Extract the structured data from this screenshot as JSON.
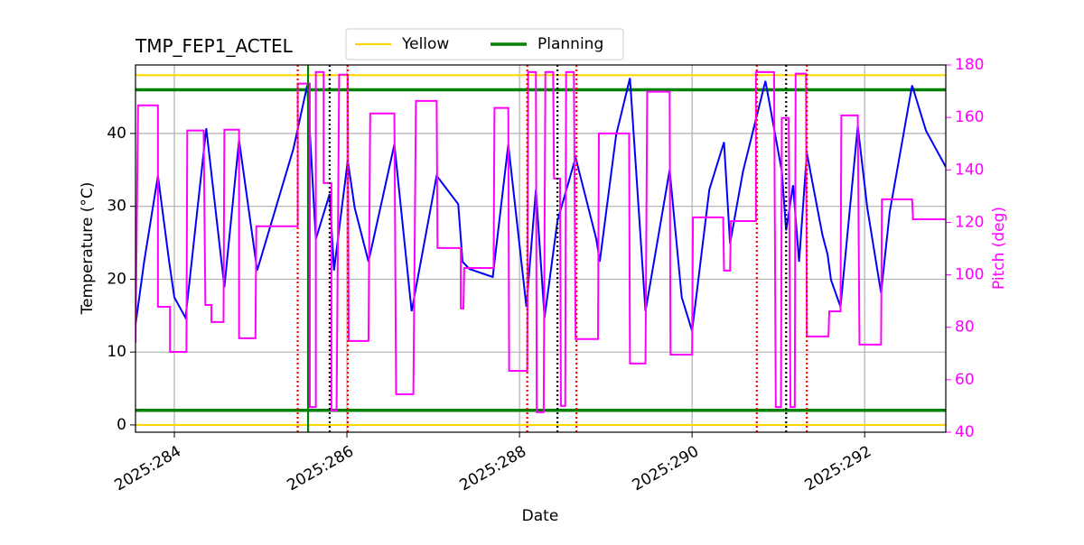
{
  "chart_data": {
    "type": "line",
    "title": "TMP_FEP1_ACTEL",
    "x_label": "Date",
    "y_label": "Temperature (°C)",
    "y2_label": "Pitch (deg)",
    "xlim": [
      283.55,
      292.94
    ],
    "ylim": [
      -1,
      49.4
    ],
    "y2lim": [
      40,
      180
    ],
    "xticks": [
      {
        "value": 284,
        "label": "2025:284"
      },
      {
        "value": 286,
        "label": "2025:286"
      },
      {
        "value": 288,
        "label": "2025:288"
      },
      {
        "value": 290,
        "label": "2025:290"
      },
      {
        "value": 292,
        "label": "2025:292"
      }
    ],
    "yticks": [
      0,
      10,
      20,
      30,
      40
    ],
    "y2ticks": [
      40,
      60,
      80,
      100,
      120,
      140,
      160,
      180
    ],
    "grid": true,
    "legend": "top",
    "limit_lines": [
      {
        "name": "Yellow",
        "color": "#ffd700",
        "values": [
          0,
          48
        ]
      },
      {
        "name": "Planning",
        "color": "#008000",
        "values": [
          2,
          46
        ]
      }
    ],
    "event_lines": [
      {
        "color": "#ff0000",
        "style": "dotted",
        "x": [
          285.43,
          286.01,
          288.09,
          288.66,
          290.75,
          291.33
        ]
      },
      {
        "color": "#000000",
        "style": "dotted",
        "x": [
          285.8,
          288.44,
          291.09
        ]
      },
      {
        "color": "#008000",
        "style": "solid",
        "x": [
          285.55
        ]
      }
    ],
    "series": [
      {
        "color": "#0000ff",
        "axis": "y",
        "x": [
          283.55,
          283.65,
          283.81,
          283.94,
          284.0,
          284.13,
          284.37,
          284.58,
          284.75,
          284.96,
          285.38,
          285.54,
          285.64,
          285.8,
          285.85,
          286.01,
          286.09,
          286.25,
          286.55,
          286.75,
          287.04,
          287.29,
          287.34,
          287.42,
          287.69,
          287.87,
          288.08,
          288.19,
          288.29,
          288.44,
          288.65,
          288.89,
          288.93,
          289.12,
          289.28,
          289.46,
          289.74,
          289.88,
          290.0,
          290.2,
          290.37,
          290.44,
          290.59,
          290.85,
          291.04,
          291.09,
          291.17,
          291.24,
          291.33,
          291.51,
          291.57,
          291.61,
          291.72,
          291.92,
          292.03,
          292.19,
          292.29,
          292.55,
          292.71,
          292.94
        ],
        "values": [
          13.7,
          22.4,
          34.2,
          22.4,
          17.5,
          14.7,
          40.7,
          18.9,
          39.1,
          21.2,
          37.9,
          46.6,
          25.5,
          31.7,
          21.2,
          36.3,
          29.8,
          22.4,
          38.5,
          15.6,
          34.2,
          30.3,
          22.4,
          21.4,
          20.3,
          38.5,
          16.2,
          32.3,
          14.7,
          28.0,
          36.7,
          25.5,
          22.4,
          39.8,
          47.6,
          15.6,
          35.0,
          17.5,
          12.9,
          32.3,
          38.8,
          24.9,
          34.8,
          47.2,
          34.8,
          26.7,
          32.9,
          22.4,
          37.3,
          26.1,
          23.4,
          19.9,
          16.2,
          41.0,
          29.8,
          18.1,
          29.2,
          46.6,
          40.4,
          35.4
        ]
      },
      {
        "color": "#ff00ff",
        "axis": "y2",
        "x": [
          283.55,
          283.58,
          283.81,
          283.81,
          283.95,
          283.95,
          284.14,
          284.15,
          284.34,
          284.36,
          284.43,
          284.43,
          284.57,
          284.58,
          284.75,
          284.75,
          284.94,
          284.95,
          285.43,
          285.43,
          285.57,
          285.57,
          285.64,
          285.64,
          285.73,
          285.73,
          285.82,
          285.82,
          285.88,
          285.91,
          286.01,
          286.02,
          286.25,
          286.27,
          286.55,
          286.57,
          286.77,
          286.8,
          287.04,
          287.05,
          287.32,
          287.32,
          287.35,
          287.36,
          287.7,
          287.71,
          287.87,
          287.88,
          288.09,
          288.1,
          288.19,
          288.2,
          288.28,
          288.3,
          288.39,
          288.4,
          288.47,
          288.48,
          288.53,
          288.54,
          288.63,
          288.65,
          288.91,
          288.92,
          289.27,
          289.28,
          289.46,
          289.48,
          289.74,
          289.75,
          290.0,
          290.01,
          290.36,
          290.37,
          290.44,
          290.45,
          290.74,
          290.74,
          290.95,
          290.97,
          291.03,
          291.04,
          291.12,
          291.14,
          291.19,
          291.2,
          291.32,
          291.33,
          291.58,
          291.59,
          291.72,
          291.73,
          291.92,
          291.94,
          292.19,
          292.2,
          292.55,
          292.56,
          292.94
        ],
        "values": [
          74,
          164.6,
          164.6,
          87.8,
          87.8,
          70.6,
          70.6,
          155,
          155,
          88.5,
          88.5,
          82,
          82,
          155.3,
          155.3,
          75.8,
          75.8,
          118.5,
          118.5,
          172.9,
          172.9,
          49.6,
          49.6,
          177.3,
          177.3,
          135,
          135,
          48.3,
          48.3,
          176.3,
          176.3,
          74.8,
          74.8,
          161.5,
          161.5,
          54.5,
          54.5,
          166.3,
          166.3,
          110.2,
          110.2,
          87.2,
          87.2,
          102.6,
          102.6,
          163.6,
          163.6,
          63.4,
          63.4,
          177.3,
          177.3,
          47.6,
          47.6,
          177.3,
          177.3,
          136.7,
          136.7,
          50,
          50,
          177.3,
          177.3,
          75.5,
          75.5,
          153.9,
          153.9,
          66.2,
          66.2,
          169.8,
          169.8,
          69.6,
          69.6,
          121.9,
          121.9,
          101.6,
          101.6,
          120.5,
          120.5,
          177.3,
          177.3,
          49.6,
          49.6,
          159.8,
          159.8,
          49.6,
          49.6,
          176.7,
          176.7,
          76.5,
          76.5,
          86.1,
          86.1,
          160.8,
          160.8,
          73.4,
          73.4,
          128.8,
          128.8,
          121.2,
          121.2
        ]
      }
    ]
  }
}
